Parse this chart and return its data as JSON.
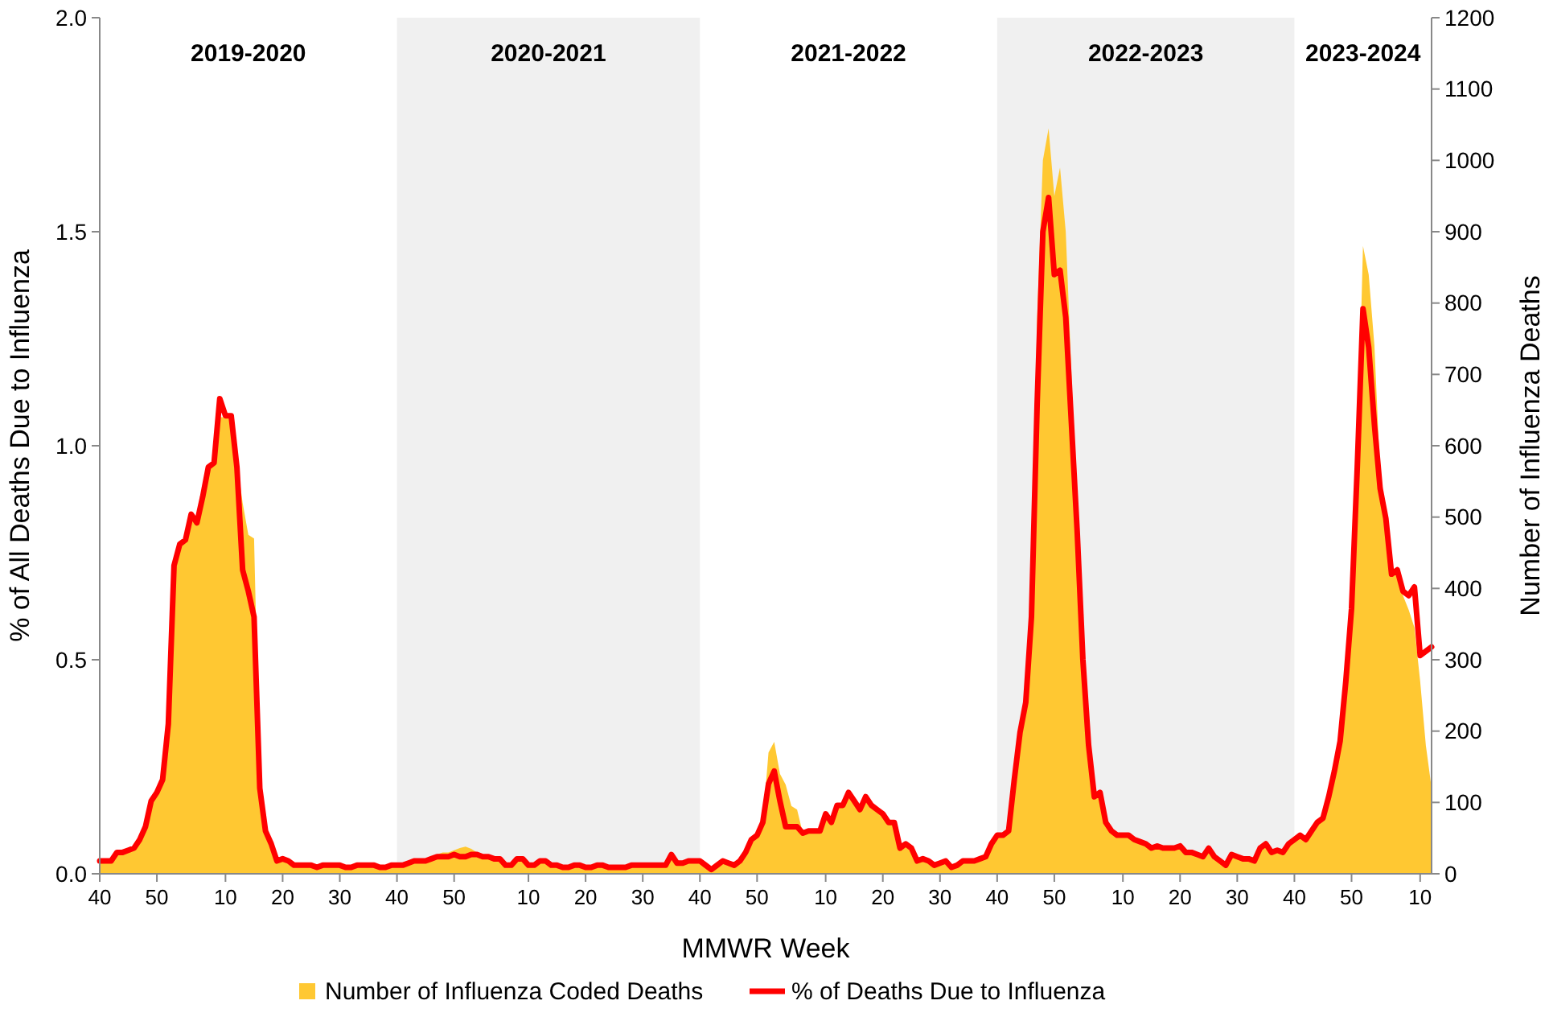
{
  "chart_data": {
    "type": "area",
    "xlabel": "MMWR Week",
    "ylabel": "% of All Deaths Due to Influenza",
    "y2label": "Number of Influenza Deaths",
    "categories": [
      "40",
      null,
      null,
      null,
      null,
      null,
      null,
      null,
      null,
      null,
      "50",
      null,
      null,
      null,
      null,
      null,
      null,
      null,
      null,
      null,
      null,
      null,
      "10",
      null,
      null,
      null,
      null,
      null,
      null,
      null,
      null,
      null,
      "20",
      null,
      null,
      null,
      null,
      null,
      null,
      null,
      null,
      null,
      "30",
      null,
      null,
      null,
      null,
      null,
      null,
      null,
      null,
      null,
      "40",
      null,
      null,
      null,
      null,
      null,
      null,
      null,
      null,
      null,
      "50",
      null,
      null,
      null,
      null,
      null,
      null,
      null,
      null,
      null,
      null,
      null,
      null,
      "10",
      null,
      null,
      null,
      null,
      null,
      null,
      null,
      null,
      null,
      "20",
      null,
      null,
      null,
      null,
      null,
      null,
      null,
      null,
      null,
      "30",
      null,
      null,
      null,
      null,
      null,
      null,
      null,
      null,
      null,
      "40",
      null,
      null,
      null,
      null,
      null,
      null,
      null,
      null,
      null,
      "50",
      null,
      null,
      null,
      null,
      null,
      null,
      null,
      null,
      null,
      null,
      null,
      "10",
      null,
      null,
      null,
      null,
      null,
      null,
      null,
      null,
      null,
      "20",
      null,
      null,
      null,
      null,
      null,
      null,
      null,
      null,
      null,
      "30",
      null,
      null,
      null,
      null,
      null,
      null,
      null,
      null,
      null,
      "40",
      null,
      null,
      null,
      null,
      null,
      null,
      null,
      null,
      null,
      "50",
      null,
      null,
      null,
      null,
      null,
      null,
      null,
      null,
      null,
      null,
      null,
      "10",
      null,
      null,
      null,
      null,
      null,
      null,
      null,
      null,
      null,
      "20",
      null,
      null,
      null,
      null,
      null,
      null,
      null,
      null,
      null,
      "30",
      null,
      null,
      null,
      null,
      null,
      null,
      null,
      null,
      null,
      "40",
      null,
      null,
      null,
      null,
      null,
      null,
      null,
      null,
      null,
      "50",
      null,
      null,
      null,
      null,
      null,
      null,
      null,
      null,
      null,
      null,
      null,
      "10",
      null,
      null
    ],
    "series": [
      {
        "name": "Number of Influenza Coded Deaths",
        "axis": "y2",
        "color": "#ffc832",
        "values": [
          18,
          18,
          18,
          30,
          30,
          33,
          36,
          48,
          66,
          102,
          114,
          132,
          210,
          432,
          462,
          468,
          504,
          492,
          528,
          570,
          576,
          640,
          640,
          640,
          580,
          520,
          475,
          470,
          130,
          60,
          42,
          18,
          21,
          18,
          12,
          12,
          12,
          12,
          9,
          12,
          12,
          12,
          12,
          9,
          9,
          12,
          12,
          12,
          12,
          9,
          9,
          12,
          12,
          12,
          15,
          18,
          18,
          18,
          21,
          27,
          30,
          30,
          33,
          36,
          38,
          35,
          30,
          27,
          24,
          21,
          21,
          12,
          12,
          21,
          21,
          12,
          12,
          18,
          18,
          12,
          12,
          9,
          9,
          12,
          12,
          9,
          9,
          12,
          12,
          9,
          9,
          9,
          9,
          12,
          12,
          12,
          12,
          12,
          12,
          12,
          27,
          15,
          15,
          18,
          18,
          18,
          12,
          6,
          12,
          18,
          15,
          12,
          18,
          30,
          48,
          54,
          72,
          170,
          185,
          140,
          125,
          95,
          90,
          57,
          60,
          60,
          60,
          84,
          72,
          96,
          96,
          114,
          102,
          90,
          108,
          96,
          90,
          84,
          72,
          72,
          36,
          42,
          36,
          18,
          21,
          18,
          12,
          15,
          18,
          9,
          12,
          18,
          18,
          18,
          21,
          24,
          42,
          54,
          54,
          60,
          132,
          198,
          240,
          360,
          780,
          1000,
          1045,
          950,
          990,
          900,
          700,
          480,
          300,
          180,
          108,
          114,
          72,
          60,
          54,
          54,
          54,
          48,
          45,
          42,
          36,
          39,
          36,
          36,
          36,
          39,
          30,
          30,
          27,
          24,
          36,
          24,
          18,
          12,
          27,
          24,
          21,
          21,
          18,
          36,
          42,
          30,
          33,
          30,
          42,
          48,
          54,
          48,
          60,
          72,
          78,
          108,
          144,
          186,
          270,
          372,
          570,
          880,
          840,
          740,
          560,
          500,
          430,
          420,
          390,
          370,
          345,
          270,
          180,
          120
        ]
      },
      {
        "name": "% of Deaths Due to Influenza",
        "type": "line",
        "axis": "y",
        "color": "#ff0000",
        "values": [
          0.03,
          0.03,
          0.03,
          0.05,
          0.05,
          0.055,
          0.06,
          0.08,
          0.11,
          0.17,
          0.19,
          0.22,
          0.35,
          0.72,
          0.77,
          0.78,
          0.84,
          0.82,
          0.88,
          0.95,
          0.96,
          1.11,
          1.07,
          1.07,
          0.95,
          0.71,
          0.66,
          0.6,
          0.2,
          0.1,
          0.07,
          0.03,
          0.035,
          0.03,
          0.02,
          0.02,
          0.02,
          0.02,
          0.015,
          0.02,
          0.02,
          0.02,
          0.02,
          0.015,
          0.015,
          0.02,
          0.02,
          0.02,
          0.02,
          0.015,
          0.015,
          0.02,
          0.02,
          0.02,
          0.025,
          0.03,
          0.03,
          0.03,
          0.035,
          0.04,
          0.04,
          0.04,
          0.045,
          0.04,
          0.04,
          0.045,
          0.045,
          0.04,
          0.04,
          0.035,
          0.035,
          0.02,
          0.02,
          0.035,
          0.035,
          0.02,
          0.02,
          0.03,
          0.03,
          0.02,
          0.02,
          0.015,
          0.015,
          0.02,
          0.02,
          0.015,
          0.015,
          0.02,
          0.02,
          0.015,
          0.015,
          0.015,
          0.015,
          0.02,
          0.02,
          0.02,
          0.02,
          0.02,
          0.02,
          0.02,
          0.045,
          0.025,
          0.025,
          0.03,
          0.03,
          0.03,
          0.02,
          0.01,
          0.02,
          0.03,
          0.025,
          0.02,
          0.03,
          0.05,
          0.08,
          0.09,
          0.12,
          0.21,
          0.24,
          0.17,
          0.11,
          0.11,
          0.11,
          0.095,
          0.1,
          0.1,
          0.1,
          0.14,
          0.12,
          0.16,
          0.16,
          0.19,
          0.17,
          0.15,
          0.18,
          0.16,
          0.15,
          0.14,
          0.12,
          0.12,
          0.06,
          0.07,
          0.06,
          0.03,
          0.035,
          0.03,
          0.02,
          0.025,
          0.03,
          0.015,
          0.02,
          0.03,
          0.03,
          0.03,
          0.035,
          0.04,
          0.07,
          0.09,
          0.09,
          0.1,
          0.22,
          0.33,
          0.4,
          0.6,
          1.1,
          1.5,
          1.58,
          1.4,
          1.41,
          1.3,
          1.05,
          0.8,
          0.5,
          0.3,
          0.18,
          0.19,
          0.12,
          0.1,
          0.09,
          0.09,
          0.09,
          0.08,
          0.075,
          0.07,
          0.06,
          0.065,
          0.06,
          0.06,
          0.06,
          0.065,
          0.05,
          0.05,
          0.045,
          0.04,
          0.06,
          0.04,
          0.03,
          0.02,
          0.045,
          0.04,
          0.035,
          0.035,
          0.03,
          0.06,
          0.07,
          0.05,
          0.055,
          0.05,
          0.07,
          0.08,
          0.09,
          0.08,
          0.1,
          0.12,
          0.13,
          0.18,
          0.24,
          0.31,
          0.45,
          0.62,
          0.95,
          1.32,
          1.23,
          1.05,
          0.9,
          0.83,
          0.7,
          0.71,
          0.66,
          0.65,
          0.67,
          0.51,
          0.52,
          0.53
        ]
      }
    ],
    "ylim": [
      0,
      2
    ],
    "yticks": [
      {
        "value": 0,
        "label": "0.0"
      },
      0.5,
      {
        "value": 1,
        "label": "1.0"
      },
      1.5,
      {
        "value": 2,
        "label": "2.0"
      }
    ],
    "y2lim": [
      0,
      1200
    ],
    "y2ticks": [
      0,
      100,
      200,
      300,
      400,
      500,
      600,
      700,
      800,
      900,
      1000,
      1100,
      1200
    ],
    "annotations": [
      "2019-2020",
      "2020-2021",
      "2021-2022",
      "2022-2023",
      "2023-2024"
    ],
    "grid": false,
    "legend": "bottom"
  }
}
